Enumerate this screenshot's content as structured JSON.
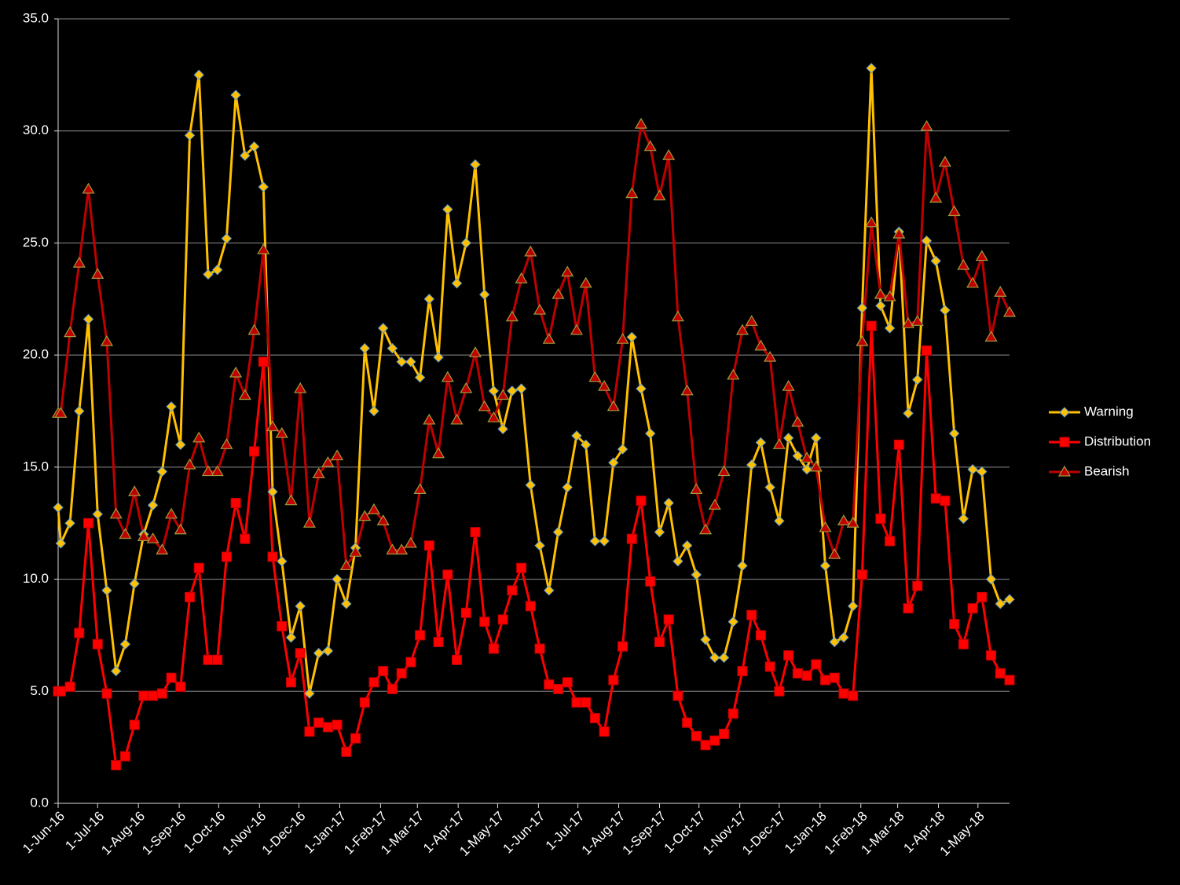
{
  "chart_data": {
    "type": "line",
    "x": [
      "2016-06-01",
      "2016-06-03",
      "2016-06-10",
      "2016-06-17",
      "2016-06-24",
      "2016-07-01",
      "2016-07-08",
      "2016-07-15",
      "2016-07-22",
      "2016-07-29",
      "2016-08-05",
      "2016-08-12",
      "2016-08-19",
      "2016-08-26",
      "2016-09-02",
      "2016-09-09",
      "2016-09-16",
      "2016-09-23",
      "2016-09-30",
      "2016-10-07",
      "2016-10-14",
      "2016-10-21",
      "2016-10-28",
      "2016-11-04",
      "2016-11-11",
      "2016-11-18",
      "2016-11-25",
      "2016-12-02",
      "2016-12-09",
      "2016-12-16",
      "2016-12-23",
      "2016-12-30",
      "2017-01-06",
      "2017-01-13",
      "2017-01-20",
      "2017-01-27",
      "2017-02-03",
      "2017-02-10",
      "2017-02-17",
      "2017-02-24",
      "2017-03-03",
      "2017-03-10",
      "2017-03-17",
      "2017-03-24",
      "2017-03-31",
      "2017-04-07",
      "2017-04-14",
      "2017-04-21",
      "2017-04-28",
      "2017-05-05",
      "2017-05-12",
      "2017-05-19",
      "2017-05-26",
      "2017-06-02",
      "2017-06-09",
      "2017-06-16",
      "2017-06-23",
      "2017-06-30",
      "2017-07-07",
      "2017-07-14",
      "2017-07-21",
      "2017-07-28",
      "2017-08-04",
      "2017-08-11",
      "2017-08-18",
      "2017-08-25",
      "2017-09-01",
      "2017-09-08",
      "2017-09-15",
      "2017-09-22",
      "2017-09-29",
      "2017-10-06",
      "2017-10-13",
      "2017-10-20",
      "2017-10-27",
      "2017-11-03",
      "2017-11-10",
      "2017-11-17",
      "2017-11-24",
      "2017-12-01",
      "2017-12-08",
      "2017-12-15",
      "2017-12-22",
      "2017-12-29",
      "2018-01-05",
      "2018-01-12",
      "2018-01-19",
      "2018-01-26",
      "2018-02-02",
      "2018-02-09",
      "2018-02-16",
      "2018-02-23",
      "2018-03-02",
      "2018-03-09",
      "2018-03-16",
      "2018-03-23",
      "2018-03-30",
      "2018-04-06",
      "2018-04-13",
      "2018-04-20",
      "2018-04-27",
      "2018-05-04",
      "2018-05-11",
      "2018-05-18",
      "2018-05-25"
    ],
    "series": [
      {
        "name": "Warning",
        "color": "#FFC000",
        "marker": "diamond",
        "values": [
          13.2,
          11.6,
          12.5,
          17.5,
          21.6,
          12.9,
          9.5,
          5.9,
          7.1,
          9.8,
          12.0,
          13.3,
          14.8,
          17.7,
          16.0,
          29.8,
          32.5,
          23.6,
          23.8,
          25.2,
          31.6,
          28.9,
          29.3,
          27.5,
          13.9,
          10.8,
          7.4,
          8.8,
          4.9,
          6.7,
          6.8,
          10.0,
          8.9,
          11.4,
          20.3,
          17.5,
          21.2,
          20.3,
          19.7,
          19.7,
          19.0,
          22.5,
          19.9,
          26.5,
          23.2,
          25.0,
          28.5,
          22.7,
          18.4,
          16.7,
          18.4,
          18.5,
          14.2,
          11.5,
          9.5,
          12.1,
          14.1,
          16.4,
          16.0,
          11.7,
          11.7,
          15.2,
          15.8,
          20.8,
          18.5,
          16.5,
          12.1,
          13.4,
          10.8,
          11.5,
          10.2,
          7.3,
          6.5,
          6.5,
          8.1,
          10.6,
          15.1,
          16.1,
          14.1,
          12.6,
          16.3,
          15.5,
          14.9,
          16.3,
          10.6,
          7.2,
          7.4,
          8.8,
          22.1,
          32.8,
          22.2,
          21.2,
          25.5,
          17.4,
          18.9,
          25.1,
          24.2,
          22.0,
          16.5,
          12.7,
          14.9,
          14.8,
          10.0,
          8.9,
          9.1
        ]
      },
      {
        "name": "Distribution",
        "color": "#FF0000",
        "marker": "square",
        "values": [
          5.0,
          5.0,
          5.2,
          7.6,
          12.5,
          7.1,
          4.9,
          1.7,
          2.1,
          3.5,
          4.8,
          4.8,
          4.9,
          5.6,
          5.2,
          9.2,
          10.5,
          6.4,
          6.4,
          11.0,
          13.4,
          11.8,
          15.7,
          19.7,
          11.0,
          7.9,
          5.4,
          6.7,
          3.2,
          3.6,
          3.4,
          3.5,
          2.3,
          2.9,
          4.5,
          5.4,
          5.9,
          5.1,
          5.8,
          6.3,
          7.5,
          11.5,
          7.2,
          10.2,
          6.4,
          8.5,
          12.1,
          8.1,
          6.9,
          8.2,
          9.5,
          10.5,
          8.8,
          6.9,
          5.3,
          5.1,
          5.4,
          4.5,
          4.5,
          3.8,
          3.2,
          5.5,
          7.0,
          11.8,
          13.5,
          9.9,
          7.2,
          8.2,
          4.8,
          3.6,
          3.0,
          2.6,
          2.8,
          3.1,
          4.0,
          5.9,
          8.4,
          7.5,
          6.1,
          5.0,
          6.6,
          5.8,
          5.7,
          6.2,
          5.5,
          5.6,
          4.9,
          4.8,
          10.2,
          21.3,
          12.7,
          11.7,
          16.0,
          8.7,
          9.7,
          20.2,
          13.6,
          13.5,
          8.0,
          7.1,
          8.7,
          9.2,
          6.6,
          5.8,
          5.5
        ]
      },
      {
        "name": "Bearish",
        "color": "#C00000",
        "marker": "triangle",
        "values": [
          17.4,
          17.4,
          21.0,
          24.1,
          27.4,
          23.6,
          20.6,
          12.9,
          12.0,
          13.9,
          11.9,
          11.8,
          11.3,
          12.9,
          12.2,
          15.1,
          16.3,
          14.8,
          14.8,
          16.0,
          19.2,
          18.2,
          21.1,
          24.7,
          16.8,
          16.5,
          13.5,
          18.5,
          12.5,
          14.7,
          15.2,
          15.5,
          10.6,
          11.2,
          12.8,
          13.1,
          12.6,
          11.3,
          11.3,
          11.6,
          14.0,
          17.1,
          15.6,
          19.0,
          17.1,
          18.5,
          20.1,
          17.7,
          17.2,
          18.2,
          21.7,
          23.4,
          24.6,
          22.0,
          20.7,
          22.7,
          23.7,
          21.1,
          23.2,
          19.0,
          18.6,
          17.7,
          20.7,
          27.2,
          30.3,
          29.3,
          27.1,
          28.9,
          21.7,
          18.4,
          14.0,
          12.2,
          13.3,
          14.8,
          19.1,
          21.1,
          21.5,
          20.4,
          19.9,
          16.0,
          18.6,
          17.0,
          15.4,
          15.0,
          12.3,
          11.1,
          12.6,
          12.5,
          20.6,
          25.9,
          22.7,
          22.6,
          25.4,
          21.4,
          21.5,
          30.2,
          27.0,
          28.6,
          26.4,
          24.0,
          23.2,
          24.4,
          20.8,
          22.8,
          21.9
        ]
      }
    ],
    "xlim": [
      "2016-06-01",
      "2018-05-25"
    ],
    "xticks": [
      {
        "value": "2016-06-01",
        "label": "1-Jun-16"
      },
      {
        "value": "2016-07-01",
        "label": "1-Jul-16"
      },
      {
        "value": "2016-08-01",
        "label": "1-Aug-16"
      },
      {
        "value": "2016-09-01",
        "label": "1-Sep-16"
      },
      {
        "value": "2016-10-01",
        "label": "1-Oct-16"
      },
      {
        "value": "2016-11-01",
        "label": "1-Nov-16"
      },
      {
        "value": "2016-12-01",
        "label": "1-Dec-16"
      },
      {
        "value": "2017-01-01",
        "label": "1-Jan-17"
      },
      {
        "value": "2017-02-01",
        "label": "1-Feb-17"
      },
      {
        "value": "2017-03-01",
        "label": "1-Mar-17"
      },
      {
        "value": "2017-04-01",
        "label": "1-Apr-17"
      },
      {
        "value": "2017-05-01",
        "label": "1-May-17"
      },
      {
        "value": "2017-06-01",
        "label": "1-Jun-17"
      },
      {
        "value": "2017-07-01",
        "label": "1-Jul-17"
      },
      {
        "value": "2017-08-01",
        "label": "1-Aug-17"
      },
      {
        "value": "2017-09-01",
        "label": "1-Sep-17"
      },
      {
        "value": "2017-10-01",
        "label": "1-Oct-17"
      },
      {
        "value": "2017-11-01",
        "label": "1-Nov-17"
      },
      {
        "value": "2017-12-01",
        "label": "1-Dec-17"
      },
      {
        "value": "2018-01-01",
        "label": "1-Jan-18"
      },
      {
        "value": "2018-02-01",
        "label": "1-Feb-18"
      },
      {
        "value": "2018-03-01",
        "label": "1-Mar-18"
      },
      {
        "value": "2018-04-01",
        "label": "1-Apr-18"
      },
      {
        "value": "2018-05-01",
        "label": "1-May-18"
      }
    ],
    "ylim": [
      0,
      35
    ],
    "yticks": [
      {
        "value": 0,
        "label": "0.0"
      },
      {
        "value": 5,
        "label": "5.0"
      },
      {
        "value": 10,
        "label": "10.0"
      },
      {
        "value": 15,
        "label": "15.0"
      },
      {
        "value": 20,
        "label": "20.0"
      },
      {
        "value": 25,
        "label": "25.0"
      },
      {
        "value": 30,
        "label": "30.0"
      },
      {
        "value": 35,
        "label": "35.0"
      }
    ],
    "grid": true,
    "legend": "right"
  }
}
